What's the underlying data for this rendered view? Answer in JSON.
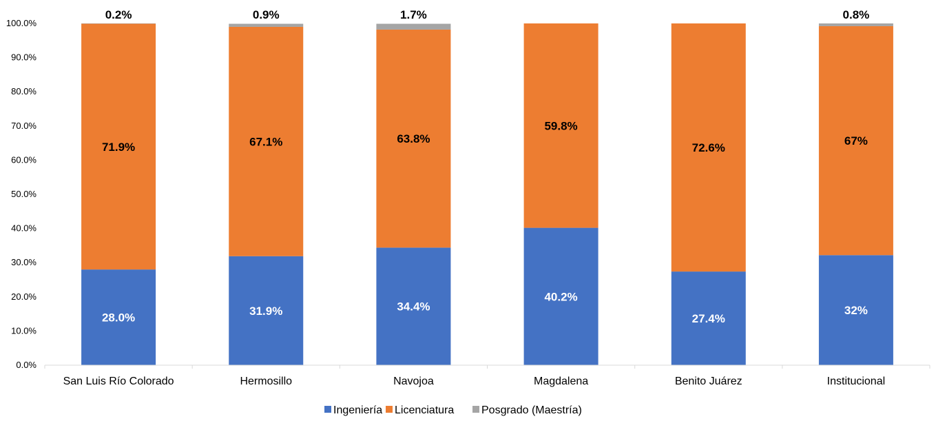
{
  "chart_data": {
    "type": "bar",
    "stacked": true,
    "categories": [
      "San Luis Río Colorado",
      "Hermosillo",
      "Navojoa",
      "Magdalena",
      "Benito Juárez",
      "Institucional"
    ],
    "series": [
      {
        "name": "Ingeniería",
        "color": "#4472C4",
        "values": [
          28.0,
          31.9,
          34.4,
          40.2,
          27.4,
          32.2
        ],
        "labels": [
          "28.0%",
          "31.9%",
          "34.4%",
          "40.2%",
          "27.4%",
          "32%"
        ],
        "label_color": "#ffffff"
      },
      {
        "name": "Licenciatura",
        "color": "#ED7D31",
        "values": [
          71.9,
          67.1,
          63.8,
          59.8,
          72.6,
          67.0
        ],
        "labels": [
          "71.9%",
          "67.1%",
          "63.8%",
          "59.8%",
          "72.6%",
          "67%"
        ],
        "label_color": "#000000"
      },
      {
        "name": "Posgrado (Maestría)",
        "color": "#A5A5A5",
        "values": [
          0.2,
          0.9,
          1.7,
          0.0,
          0.0,
          0.8
        ],
        "labels": [
          "0.2%",
          "0.9%",
          "1.7%",
          "",
          "",
          "0.8%"
        ],
        "label_color": "#000000"
      }
    ],
    "y_ticks": [
      "0.0%",
      "10.0%",
      "20.0%",
      "30.0%",
      "40.0%",
      "50.0%",
      "60.0%",
      "70.0%",
      "80.0%",
      "90.0%",
      "100.0%"
    ],
    "ylim": [
      0,
      100
    ],
    "grid": false,
    "legend_position": "bottom"
  }
}
